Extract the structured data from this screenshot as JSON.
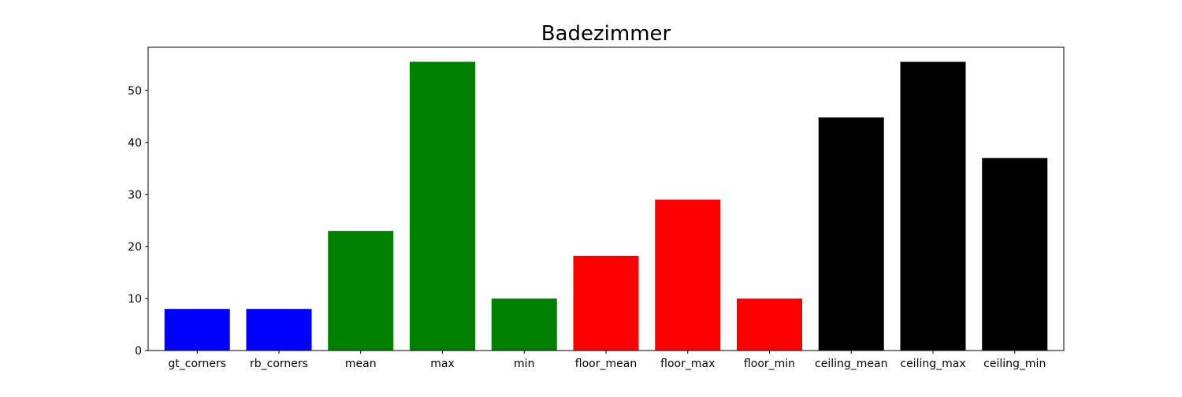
{
  "chart_data": {
    "type": "bar",
    "title": "Badezimmer",
    "xlabel": "",
    "ylabel": "",
    "categories": [
      "gt_corners",
      "rb_corners",
      "mean",
      "max",
      "min",
      "floor_mean",
      "floor_max",
      "floor_min",
      "ceiling_mean",
      "ceiling_max",
      "ceiling_min"
    ],
    "values": [
      8,
      8,
      23,
      55.5,
      10,
      18.2,
      29,
      10,
      44.8,
      55.5,
      37
    ],
    "bar_colors": [
      "#0000ff",
      "#0000ff",
      "#008000",
      "#008000",
      "#008000",
      "#ff0000",
      "#ff0000",
      "#ff0000",
      "#000000",
      "#000000",
      "#000000"
    ],
    "ylim": [
      0,
      58.3
    ],
    "yticks": [
      0,
      10,
      20,
      30,
      40,
      50
    ],
    "grid": false,
    "legend": "none"
  }
}
